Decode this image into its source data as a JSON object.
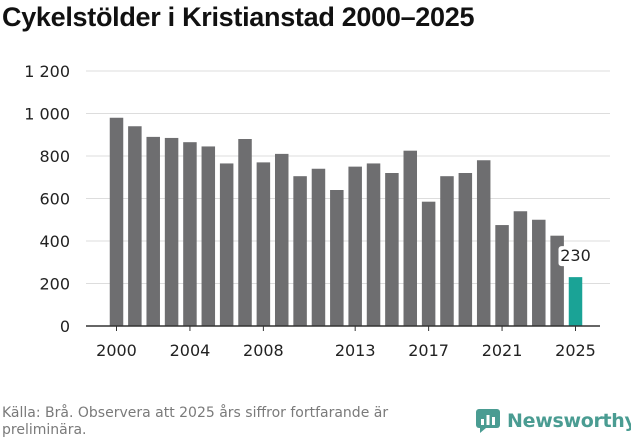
{
  "title": "Cykelstölder i Kristianstad 2000–2025",
  "source_text": "Källa: Brå. Observera att 2025 års siffror fortfarande är preliminära.",
  "brand": {
    "name": "Newsworthy",
    "icon": "newsworthy-logo-icon"
  },
  "colors": {
    "bar": "#6e6e70",
    "highlight": "#1aa396",
    "grid": "#dddddd",
    "axis": "#333333"
  },
  "chart_data": {
    "type": "bar",
    "title": "Cykelstölder i Kristianstad 2000–2025",
    "xlabel": "",
    "ylabel": "",
    "ylim": [
      0,
      1200
    ],
    "y_ticks": [
      0,
      200,
      400,
      600,
      800,
      1000,
      1200
    ],
    "y_tick_labels": [
      "0",
      "200",
      "400",
      "600",
      "800",
      "1 000",
      "1 200"
    ],
    "x_tick_labels": [
      "2000",
      "2004",
      "2008",
      "2013",
      "2017",
      "2021",
      "2025"
    ],
    "categories": [
      "2000",
      "2001",
      "2002",
      "2003",
      "2004",
      "2005",
      "2006",
      "2007",
      "2008",
      "2009",
      "2010",
      "2011",
      "2012",
      "2013",
      "2014",
      "2015",
      "2016",
      "2017",
      "2018",
      "2019",
      "2020",
      "2021",
      "2022",
      "2023",
      "2024",
      "2025"
    ],
    "values": [
      980,
      940,
      890,
      885,
      865,
      845,
      765,
      880,
      770,
      810,
      705,
      740,
      640,
      750,
      765,
      720,
      825,
      585,
      705,
      720,
      780,
      475,
      540,
      500,
      425,
      230
    ],
    "highlight_category": "2025",
    "data_labels": [
      {
        "category": "2025",
        "text": "230"
      }
    ],
    "grid": true
  }
}
